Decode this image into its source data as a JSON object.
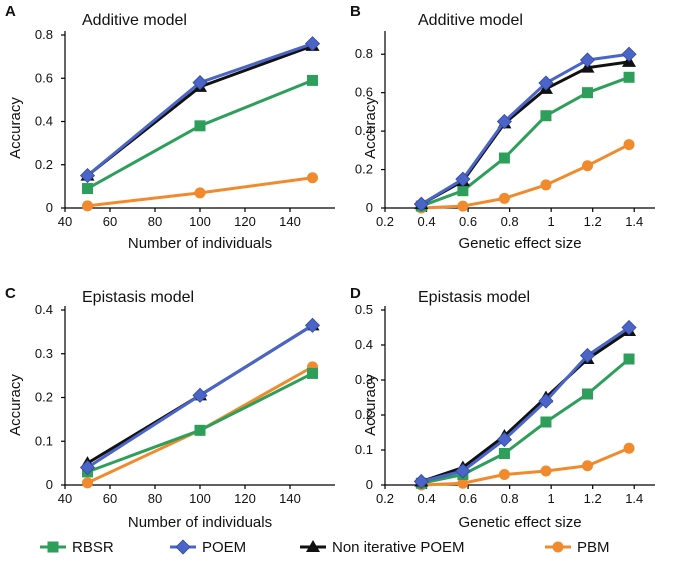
{
  "chart_data": [
    {
      "panel": "A",
      "type": "line",
      "title": "Additive model",
      "xlabel": "Number of individuals",
      "ylabel": "Accuracy",
      "xlim": [
        40,
        160
      ],
      "ylim": [
        0,
        0.8
      ],
      "xticks": [
        40,
        60,
        80,
        100,
        120,
        140
      ],
      "yticks": [
        0,
        0.2,
        0.4,
        0.6,
        0.8
      ],
      "xticklabels": [
        "40",
        "60",
        "80",
        "100",
        "120",
        "140"
      ],
      "yticklabels": [
        "0",
        "0.2",
        "0.4",
        "0.6",
        "0.8"
      ],
      "x": [
        50,
        100,
        150
      ],
      "series": [
        {
          "name": "RBSR",
          "values": [
            0.09,
            0.38,
            0.59
          ]
        },
        {
          "name": "Non iterative POEM",
          "values": [
            0.15,
            0.56,
            0.75
          ]
        },
        {
          "name": "POEM",
          "values": [
            0.15,
            0.58,
            0.76
          ]
        },
        {
          "name": "PBM",
          "values": [
            0.01,
            0.07,
            0.14
          ]
        }
      ]
    },
    {
      "panel": "B",
      "type": "line",
      "title": "Additive model",
      "xlabel": "Genetic effect size",
      "ylabel": "Accuracy",
      "xlim": [
        0.2,
        1.5
      ],
      "ylim": [
        0,
        0.9
      ],
      "xticks": [
        0.2,
        0.4,
        0.6,
        0.8,
        1,
        1.2,
        1.4
      ],
      "yticks": [
        0,
        0.2,
        0.4,
        0.6,
        0.8
      ],
      "xticklabels": [
        "0.2",
        "0.4",
        "0.6",
        "0.8",
        "1",
        "1.2",
        "1.4"
      ],
      "yticklabels": [
        "0",
        "0.2",
        "0.4",
        "0.6",
        "0.8"
      ],
      "x": [
        0.375,
        0.575,
        0.775,
        0.975,
        1.175,
        1.375
      ],
      "series": [
        {
          "name": "RBSR",
          "values": [
            0.01,
            0.09,
            0.26,
            0.48,
            0.6,
            0.68
          ]
        },
        {
          "name": "Non iterative POEM",
          "values": [
            0.02,
            0.14,
            0.44,
            0.62,
            0.73,
            0.76
          ]
        },
        {
          "name": "POEM",
          "values": [
            0.02,
            0.15,
            0.45,
            0.65,
            0.77,
            0.8
          ]
        },
        {
          "name": "PBM",
          "values": [
            0.0,
            0.01,
            0.05,
            0.12,
            0.22,
            0.33
          ]
        }
      ]
    },
    {
      "panel": "C",
      "type": "line",
      "title": "Epistasis model",
      "xlabel": "Number of individuals",
      "ylabel": "Accuracy",
      "xlim": [
        40,
        160
      ],
      "ylim": [
        0,
        0.4
      ],
      "xticks": [
        40,
        60,
        80,
        100,
        120,
        140
      ],
      "yticks": [
        0,
        0.1,
        0.2,
        0.3,
        0.4
      ],
      "xticklabels": [
        "40",
        "60",
        "80",
        "100",
        "120",
        "140"
      ],
      "yticklabels": [
        "0",
        "0.1",
        "0.2",
        "0.3",
        "0.4"
      ],
      "x": [
        50,
        100,
        150
      ],
      "series": [
        {
          "name": "RBSR",
          "values": [
            0.03,
            0.125,
            0.255
          ]
        },
        {
          "name": "Non iterative POEM",
          "values": [
            0.05,
            0.205,
            0.365
          ]
        },
        {
          "name": "POEM",
          "values": [
            0.04,
            0.205,
            0.365
          ]
        },
        {
          "name": "PBM",
          "values": [
            0.005,
            0.125,
            0.27
          ]
        }
      ]
    },
    {
      "panel": "D",
      "type": "line",
      "title": "Epistasis model",
      "xlabel": "Genetic effect size",
      "ylabel": "Accuracy",
      "xlim": [
        0.2,
        1.5
      ],
      "ylim": [
        0,
        0.5
      ],
      "xticks": [
        0.2,
        0.4,
        0.6,
        0.8,
        1,
        1.2,
        1.4
      ],
      "yticks": [
        0,
        0.1,
        0.2,
        0.3,
        0.4,
        0.5
      ],
      "xticklabels": [
        "0.2",
        "0.4",
        "0.6",
        "0.8",
        "1",
        "1.2",
        "1.4"
      ],
      "yticklabels": [
        "0",
        "0.1",
        "0.2",
        "0.3",
        "0.4",
        "0.5"
      ],
      "x": [
        0.375,
        0.575,
        0.775,
        0.975,
        1.175,
        1.375
      ],
      "series": [
        {
          "name": "RBSR",
          "values": [
            0.005,
            0.03,
            0.09,
            0.18,
            0.26,
            0.36
          ]
        },
        {
          "name": "Non iterative POEM",
          "values": [
            0.01,
            0.05,
            0.14,
            0.25,
            0.36,
            0.44
          ]
        },
        {
          "name": "POEM",
          "values": [
            0.01,
            0.04,
            0.13,
            0.24,
            0.37,
            0.45
          ]
        },
        {
          "name": "PBM",
          "values": [
            0.0,
            0.005,
            0.03,
            0.04,
            0.055,
            0.105
          ]
        }
      ]
    }
  ],
  "legend": [
    {
      "name": "RBSR",
      "color": "#2e9e5b",
      "marker": "square"
    },
    {
      "name": "POEM",
      "color": "#4a64c8",
      "marker": "diamond"
    },
    {
      "name": "Non iterative POEM",
      "color": "#111111",
      "marker": "triangle"
    },
    {
      "name": "PBM",
      "color": "#f08a2c",
      "marker": "circle"
    }
  ]
}
